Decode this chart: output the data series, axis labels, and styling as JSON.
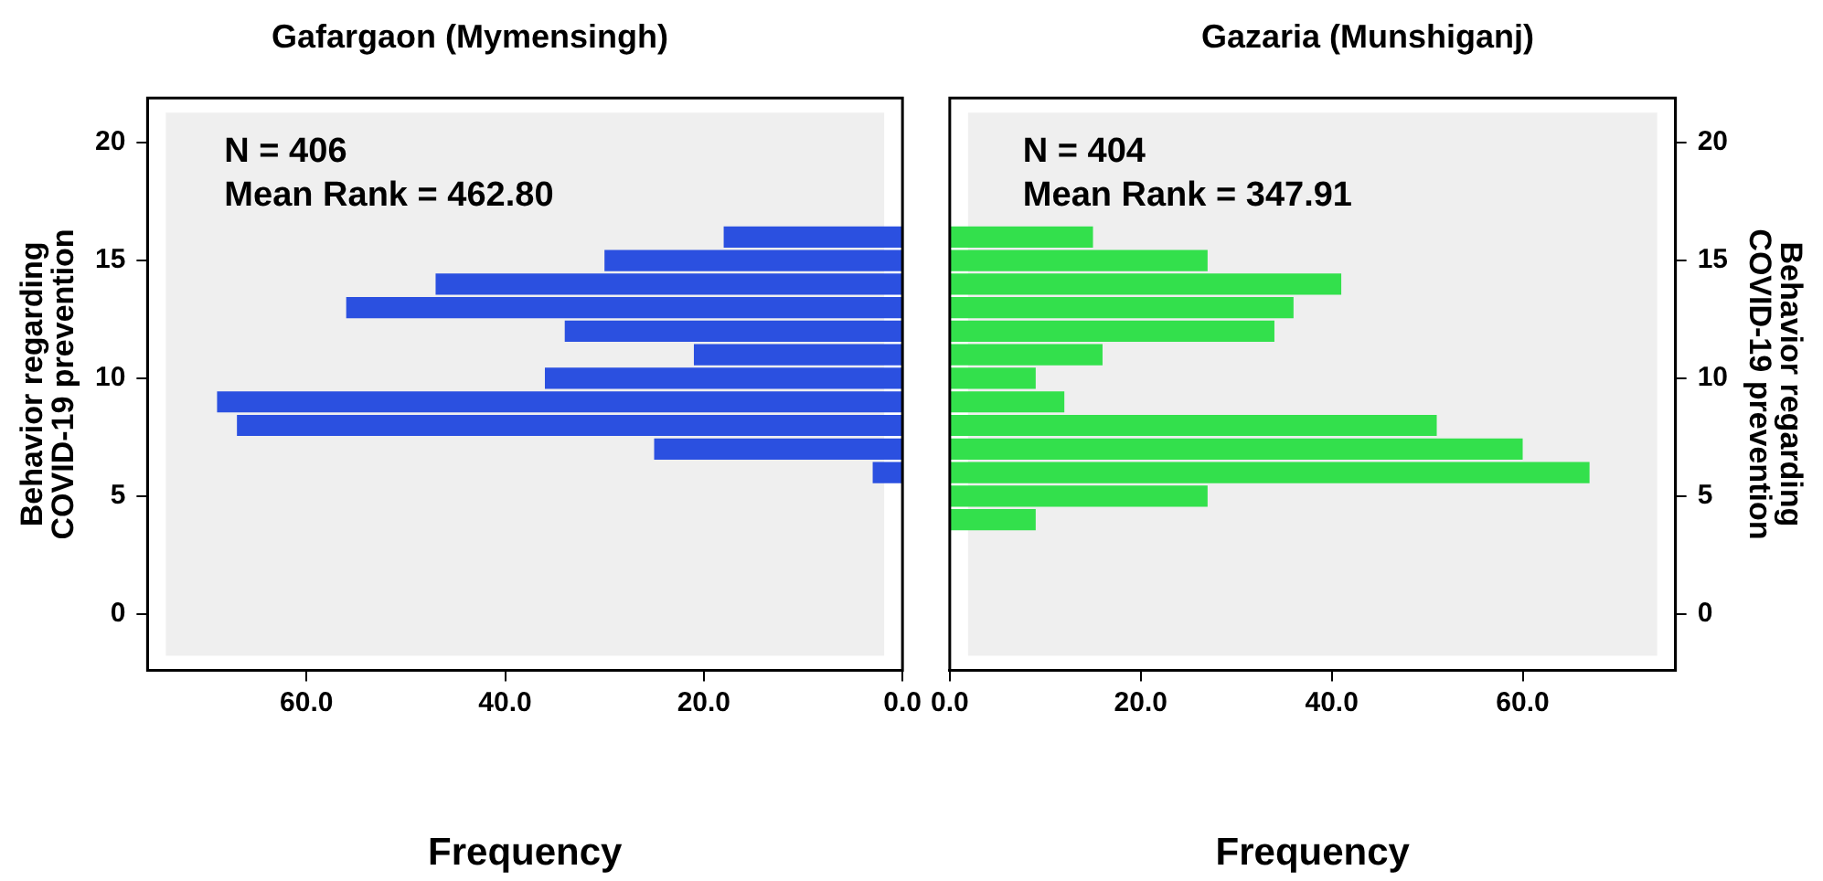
{
  "chart_data": [
    {
      "type": "histogram",
      "orientation": "horizontal",
      "title": "Gafargaon (Mymensingh)",
      "xlabel": "Frequency",
      "ylabel": "Behavior regarding COVID-19 prevention",
      "annotations": [
        "N = 406",
        "Mean Rank = 462.80"
      ],
      "bins": [
        3.5,
        4.5,
        5.5,
        6.5,
        7.5,
        8.5,
        9.5,
        10.5,
        11.5,
        12.5,
        13.5,
        14.5,
        15.5,
        16.5
      ],
      "values": [
        0,
        0,
        3,
        25,
        67,
        69,
        36,
        21,
        34,
        56,
        47,
        30,
        18
      ],
      "color": "#2b50e0",
      "xlim": [
        76,
        0
      ],
      "xticks": [
        {
          "value": 60,
          "label": "60.0"
        },
        {
          "value": 40,
          "label": "40.0"
        },
        {
          "value": 20,
          "label": "20.0"
        },
        {
          "value": 0,
          "label": "0.0"
        }
      ],
      "ylim": [
        -2.4,
        21.9
      ],
      "yticks": [
        0,
        5,
        10,
        15,
        20
      ],
      "grid": false,
      "legend": false
    },
    {
      "type": "histogram",
      "orientation": "horizontal",
      "title": "Gazaria (Munshiganj)",
      "xlabel": "Frequency",
      "ylabel": "Behavior regarding COVID-19 prevention",
      "annotations": [
        "N = 404",
        "Mean Rank = 347.91"
      ],
      "bins": [
        3.5,
        4.5,
        5.5,
        6.5,
        7.5,
        8.5,
        9.5,
        10.5,
        11.5,
        12.5,
        13.5,
        14.5,
        15.5,
        16.5
      ],
      "values": [
        9,
        27,
        67,
        60,
        51,
        12,
        9,
        16,
        34,
        36,
        41,
        27,
        15
      ],
      "color": "#33e04c",
      "xlim": [
        0,
        76
      ],
      "xticks": [
        {
          "value": 0,
          "label": "0.0"
        },
        {
          "value": 20,
          "label": "20.0"
        },
        {
          "value": 40,
          "label": "40.0"
        },
        {
          "value": 60,
          "label": "60.0"
        }
      ],
      "ylim": [
        -2.4,
        21.9
      ],
      "yticks": [
        0,
        5,
        10,
        15,
        20
      ],
      "grid": false,
      "legend": false
    }
  ]
}
